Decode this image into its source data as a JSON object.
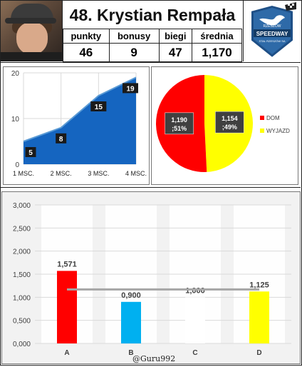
{
  "rider": {
    "title": "48. Krystian Rempała"
  },
  "stats": {
    "headers": [
      "punkty",
      "bonusy",
      "biegi",
      "średnia"
    ],
    "values": [
      "46",
      "9",
      "47",
      "1,170"
    ]
  },
  "logo": {
    "text_top": "RZESZÓW",
    "text_main": "SPEEDWAY",
    "text_bottom": "STAL RZESZÓW SA"
  },
  "colors": {
    "area_fill": "#1565c0",
    "area_line": "#5b9bd5",
    "pie_dom": "#ff0000",
    "pie_wyjazd": "#ffff00",
    "bar_a": "#ff0000",
    "bar_b": "#00b0f0",
    "bar_c": "#ffffff",
    "bar_d": "#ffff00",
    "avg_line": "#a6a6a6"
  },
  "credit": "@Guru992",
  "chart_data": [
    {
      "type": "area",
      "categories": [
        "1 MSC.",
        "2 MSC.",
        "3 MSC.",
        "4 MSC."
      ],
      "values": [
        5,
        8,
        15,
        19
      ],
      "ylim": [
        0,
        20
      ],
      "yticks": [
        "0",
        "10",
        "20"
      ],
      "grid": true
    },
    {
      "type": "pie",
      "slices": [
        {
          "name": "DOM",
          "value": 1.19,
          "label": "1,190\n;51%"
        },
        {
          "name": "WYJAZD",
          "value": 1.154,
          "label": "1,154\n;49%"
        }
      ],
      "legend": "right"
    },
    {
      "type": "bar",
      "categories": [
        "A",
        "B",
        "C",
        "D"
      ],
      "values": [
        1.571,
        0.9,
        1.0,
        1.125
      ],
      "labels": [
        "1,571",
        "0,900",
        "1,000",
        "1,125"
      ],
      "reference_line": 1.17,
      "ylim": [
        0,
        3
      ],
      "yticks": [
        "0,000",
        "0,500",
        "1,000",
        "1,500",
        "2,000",
        "2,500",
        "3,000"
      ],
      "grid": true
    }
  ]
}
